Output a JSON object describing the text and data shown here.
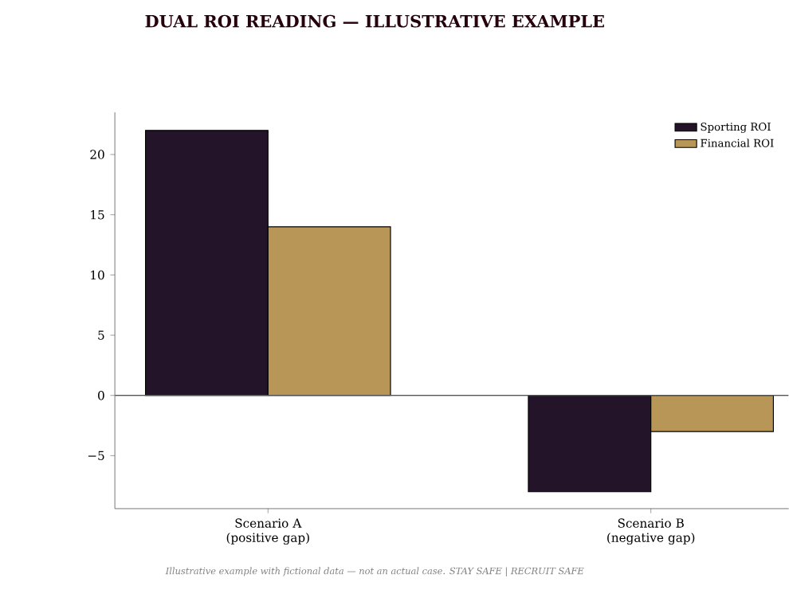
{
  "chart_data": {
    "type": "bar",
    "title": "DUAL ROI READING — ILLUSTRATIVE EXAMPLE",
    "categories": [
      "Scenario A (positive gap)",
      "Scenario B (negative gap)"
    ],
    "series": [
      {
        "name": "Sporting ROI",
        "color": "#24142a",
        "values": [
          22,
          -8
        ]
      },
      {
        "name": "Financial ROI",
        "color": "#b89657",
        "values": [
          14,
          -3
        ]
      }
    ],
    "ylim": [
      -9.4,
      23.5
    ],
    "yticks": [
      {
        "value": -5,
        "label": "−5"
      },
      0,
      5,
      10,
      15,
      20
    ],
    "ref_lines": [
      {
        "axis": "y",
        "value": 0,
        "color": "#555555"
      }
    ],
    "legend": "top right",
    "grid": false,
    "annotations": [
      "Illustrative example with fictional data — not an actual case. STAY SAFE | RECRUIT SAFE"
    ]
  }
}
